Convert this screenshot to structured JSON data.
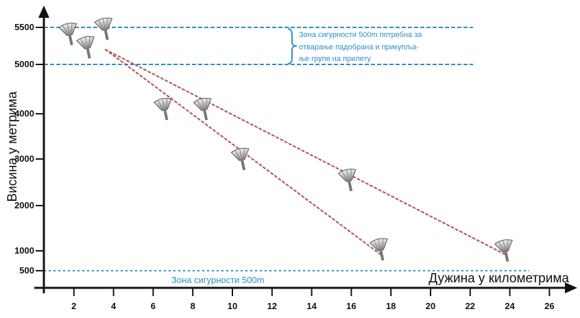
{
  "chart_data": {
    "type": "line",
    "xlabel": "Дужина у километрима",
    "ylabel": "Висина у метрима",
    "x_ticks": [
      2,
      4,
      6,
      8,
      10,
      12,
      14,
      16,
      18,
      20,
      22,
      24,
      26
    ],
    "y_ticks": [
      500,
      1000,
      2000,
      3000,
      4000,
      5000,
      5500
    ],
    "xlim": [
      0,
      27
    ],
    "ylim": [
      0,
      5800
    ],
    "reference_lines": [
      5500,
      5000,
      500
    ],
    "annotations": {
      "top_zone": [
        "Зона сигурности 500m потребна за",
        "отварање падобрана и прикупља-",
        "ње групе на прилету"
      ],
      "bottom_zone": "Зона сигурности 500m"
    },
    "series": [
      {
        "x": [
          3.6,
          17.5
        ],
        "y": [
          5200,
          900
        ]
      },
      {
        "x": [
          3.6,
          23.8
        ],
        "y": [
          5200,
          900
        ]
      }
    ],
    "parachutes": [
      {
        "x": 1.8,
        "y": 5380
      },
      {
        "x": 2.7,
        "y": 5200
      },
      {
        "x": 3.6,
        "y": 5450
      },
      {
        "x": 6.6,
        "y": 4050
      },
      {
        "x": 8.6,
        "y": 4050
      },
      {
        "x": 10.5,
        "y": 2950
      },
      {
        "x": 15.9,
        "y": 2500
      },
      {
        "x": 17.5,
        "y": 980
      },
      {
        "x": 23.8,
        "y": 950
      }
    ],
    "colors": {
      "zone": "#2b8fc6",
      "series": "#b65a5a",
      "axis": "#111111"
    }
  }
}
